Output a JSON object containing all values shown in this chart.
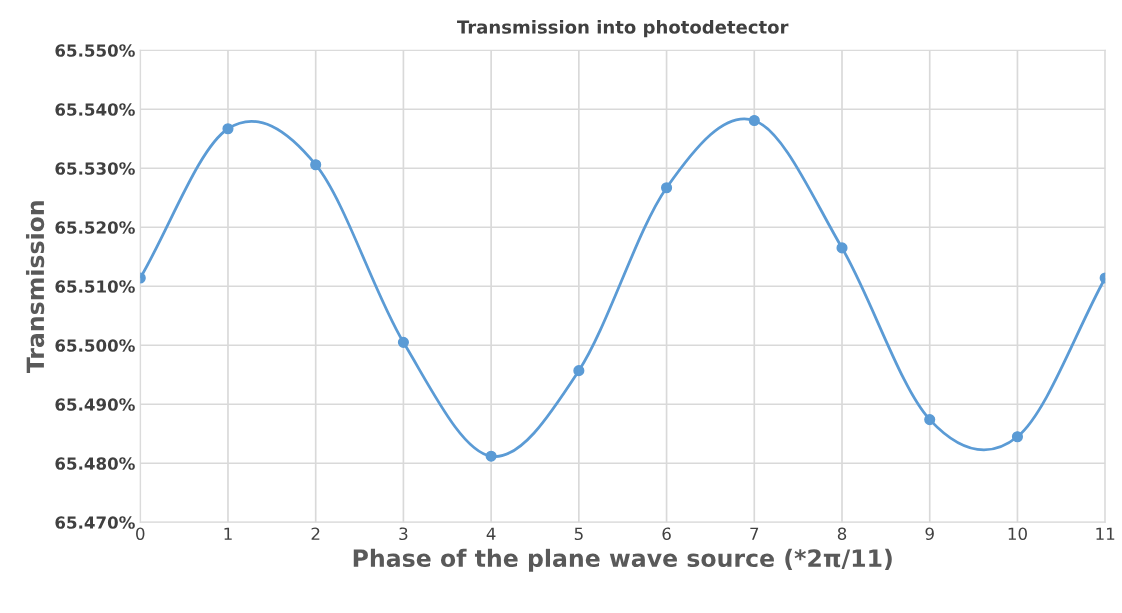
{
  "chart_data": {
    "type": "line",
    "title": "Transmission into photodetector",
    "xlabel": "Phase of the plane wave source (*2π/11)",
    "ylabel": "Transmission",
    "x": [
      0,
      1,
      2,
      3,
      4,
      5,
      6,
      7,
      8,
      9,
      10,
      11
    ],
    "series": [
      {
        "color": "#5b9bd5",
        "values": [
          65.5114,
          65.5367,
          65.5306,
          65.5005,
          65.4812,
          65.4957,
          65.5267,
          65.5381,
          65.5165,
          65.4874,
          65.4845,
          65.5114
        ]
      }
    ],
    "xlim": [
      0,
      11
    ],
    "xticks": [
      0,
      1,
      2,
      3,
      4,
      5,
      6,
      7,
      8,
      9,
      10,
      11
    ],
    "ylim": [
      65.47,
      65.55
    ],
    "yticks": [
      {
        "value": 65.47,
        "label": "65.470%"
      },
      {
        "value": 65.48,
        "label": "65.480%"
      },
      {
        "value": 65.49,
        "label": "65.490%"
      },
      {
        "value": 65.5,
        "label": "65.500%"
      },
      {
        "value": 65.51,
        "label": "65.510%"
      },
      {
        "value": 65.52,
        "label": "65.520%"
      },
      {
        "value": 65.53,
        "label": "65.530%"
      },
      {
        "value": 65.54,
        "label": "65.540%"
      },
      {
        "value": 65.55,
        "label": "65.550%"
      }
    ],
    "grid": true,
    "marker": "circle",
    "line_style": "solid"
  }
}
